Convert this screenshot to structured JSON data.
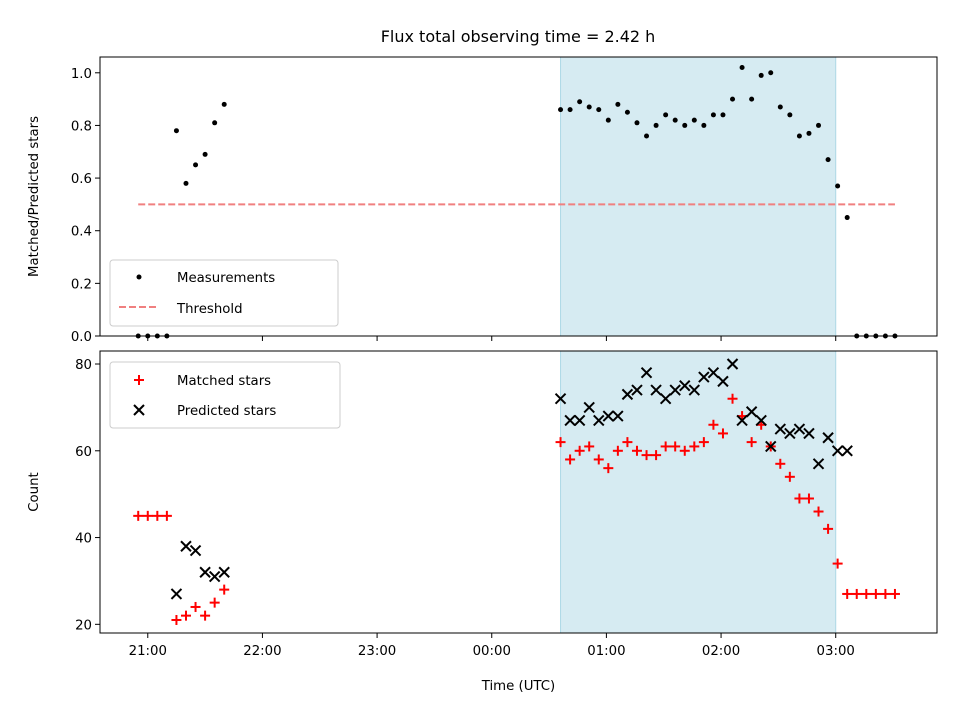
{
  "figure": {
    "title": "Flux total observing time = 2.42 h"
  },
  "colors": {
    "measurement": "#000000",
    "threshold": "#f08080",
    "matched": "#ff0000",
    "predicted": "#000000",
    "span": "#add8e6"
  },
  "chart_data": [
    {
      "type": "scatter",
      "ylabel": "Matched/Predicted stars",
      "xlabel": "",
      "ylim": [
        0,
        1.06
      ],
      "yticks": [
        "0.0",
        "0.2",
        "0.4",
        "0.6",
        "0.8",
        "1.0"
      ],
      "xlim": [
        "20:35",
        "03:53"
      ],
      "shaded_span": [
        "00:36",
        "03:00"
      ],
      "legend": {
        "placement": "lower left",
        "entries": [
          "Measurements",
          "Threshold"
        ]
      },
      "series": [
        {
          "name": "Measurements",
          "marker": "dot",
          "x": [
            "20:55",
            "21:00",
            "21:05",
            "21:10",
            "21:15",
            "21:20",
            "21:25",
            "21:30",
            "21:35",
            "21:40",
            "21:45",
            "00:36",
            "00:41",
            "00:46",
            "00:51",
            "00:56",
            "01:01",
            "01:06",
            "01:11",
            "01:16",
            "01:21",
            "01:26",
            "01:31",
            "01:36",
            "01:41",
            "01:46",
            "01:51",
            "01:56",
            "02:01",
            "02:06",
            "02:11",
            "02:16",
            "02:21",
            "02:26",
            "02:31",
            "02:36",
            "02:41",
            "02:46",
            "02:51",
            "02:56",
            "03:01",
            "03:06",
            "03:11",
            "03:16",
            "03:21",
            "03:26",
            "03:31"
          ],
          "y": [
            0.0,
            0.0,
            0.0,
            0.0,
            0.78,
            0.58,
            0.65,
            0.69,
            0.81,
            0.88,
            null,
            0.86,
            0.86,
            0.89,
            0.87,
            0.86,
            0.82,
            0.88,
            0.85,
            0.81,
            0.76,
            0.8,
            0.84,
            0.82,
            0.8,
            0.82,
            0.8,
            0.84,
            0.84,
            0.9,
            1.02,
            0.9,
            0.99,
            1.0,
            0.87,
            0.84,
            0.76,
            0.77,
            0.8,
            0.67,
            0.57,
            0.45,
            0.0,
            0.0,
            0.0,
            0.0,
            0.0
          ]
        },
        {
          "name": "Threshold",
          "type": "line",
          "x": [
            "20:55",
            "03:31"
          ],
          "y": [
            0.5,
            0.5
          ]
        }
      ]
    },
    {
      "type": "scatter",
      "ylabel": "Count",
      "xlabel": "Time (UTC)",
      "ylim": [
        18,
        83
      ],
      "yticks": [
        "20",
        "40",
        "60",
        "80"
      ],
      "xlim": [
        "20:35",
        "03:53"
      ],
      "xticks": [
        "21:00",
        "22:00",
        "23:00",
        "00:00",
        "01:00",
        "02:00",
        "03:00"
      ],
      "shaded_span": [
        "00:36",
        "03:00"
      ],
      "legend": {
        "placement": "upper left",
        "entries": [
          "Matched stars",
          "Predicted stars"
        ]
      },
      "series": [
        {
          "name": "Matched stars",
          "marker": "plus",
          "x": [
            "20:55",
            "21:00",
            "21:05",
            "21:10",
            "21:15",
            "21:20",
            "21:25",
            "21:30",
            "21:35",
            "21:40",
            "00:36",
            "00:41",
            "00:46",
            "00:51",
            "00:56",
            "01:01",
            "01:06",
            "01:11",
            "01:16",
            "01:21",
            "01:26",
            "01:31",
            "01:36",
            "01:41",
            "01:46",
            "01:51",
            "01:56",
            "02:01",
            "02:06",
            "02:11",
            "02:16",
            "02:21",
            "02:26",
            "02:31",
            "02:36",
            "02:41",
            "02:46",
            "02:51",
            "02:56",
            "03:01",
            "03:06",
            "03:11",
            "03:16",
            "03:21",
            "03:26",
            "03:31"
          ],
          "y": [
            45,
            45,
            45,
            45,
            21,
            22,
            24,
            22,
            25,
            28,
            62,
            58,
            60,
            61,
            58,
            56,
            60,
            62,
            60,
            59,
            59,
            61,
            61,
            60,
            61,
            62,
            66,
            64,
            72,
            68,
            62,
            66,
            61,
            57,
            54,
            49,
            49,
            46,
            42,
            34,
            27,
            27,
            27,
            27,
            27,
            27
          ]
        },
        {
          "name": "Predicted stars",
          "marker": "x",
          "x": [
            "21:15",
            "21:20",
            "21:25",
            "21:30",
            "21:35",
            "21:40",
            "00:36",
            "00:41",
            "00:46",
            "00:51",
            "00:56",
            "01:01",
            "01:06",
            "01:11",
            "01:16",
            "01:21",
            "01:26",
            "01:31",
            "01:36",
            "01:41",
            "01:46",
            "01:51",
            "01:56",
            "02:01",
            "02:06",
            "02:11",
            "02:16",
            "02:21",
            "02:26",
            "02:31",
            "02:36",
            "02:41",
            "02:46",
            "02:51",
            "02:56",
            "03:01",
            "03:06"
          ],
          "y": [
            27,
            38,
            37,
            32,
            31,
            32,
            72,
            67,
            67,
            70,
            67,
            68,
            68,
            73,
            74,
            78,
            74,
            72,
            74,
            75,
            74,
            77,
            78,
            76,
            80,
            67,
            69,
            67,
            61,
            65,
            64,
            65,
            64,
            57,
            63,
            60,
            60
          ]
        }
      ]
    }
  ]
}
